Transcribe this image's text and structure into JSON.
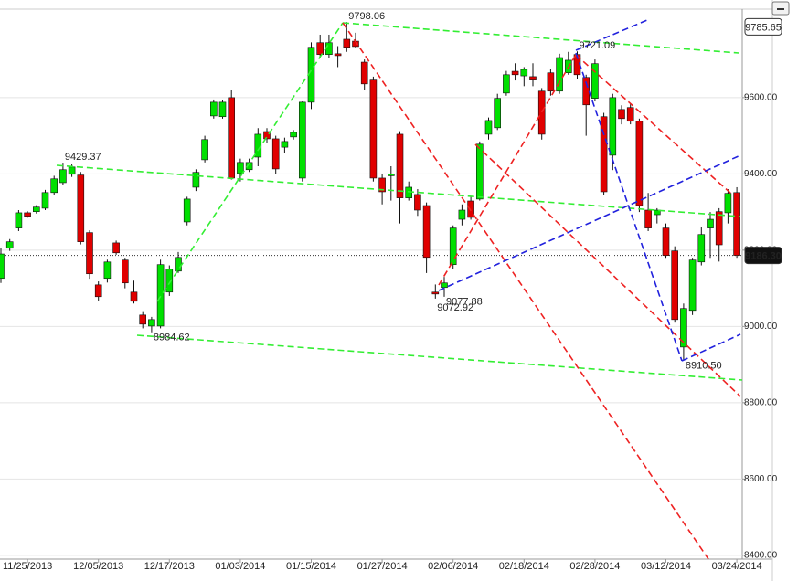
{
  "chart_data": {
    "type": "candlestick",
    "categories": [
      null,
      null,
      null,
      "11/25/2013",
      null,
      null,
      null,
      null,
      null,
      null,
      null,
      "12/05/2013",
      null,
      null,
      null,
      null,
      null,
      null,
      null,
      "12/17/2013",
      null,
      null,
      null,
      null,
      null,
      null,
      null,
      "01/03/2014",
      null,
      null,
      null,
      null,
      null,
      null,
      null,
      "01/15/2014",
      null,
      null,
      null,
      null,
      null,
      null,
      null,
      "01/27/2014",
      null,
      null,
      null,
      null,
      null,
      null,
      null,
      "02/06/2014",
      null,
      null,
      null,
      null,
      null,
      null,
      null,
      "02/18/2014",
      null,
      null,
      null,
      null,
      null,
      null,
      null,
      "02/28/2014",
      null,
      null,
      null,
      null,
      null,
      null,
      null,
      "03/12/2014",
      null,
      null,
      null,
      null,
      null,
      null,
      null,
      "03/24/2014"
    ],
    "open": [
      9126,
      9205,
      9258,
      9298,
      9301,
      9310,
      9351,
      9377,
      9399,
      9397,
      9246,
      9109,
      9126,
      9219,
      9174,
      9090,
      9030,
      9001,
      9001,
      9090,
      9145,
      9274,
      9365,
      9437,
      9552,
      9550,
      9600,
      9401,
      9411,
      9444,
      9511,
      9492,
      9470,
      9497,
      9389,
      9588,
      9744,
      9713,
      9715,
      9753,
      9748,
      9693,
      9646,
      9389,
      9395,
      9504,
      9337,
      9346,
      9317,
      9090,
      9102,
      9162,
      9281,
      9329,
      9334,
      9504,
      9521,
      9612,
      9669,
      9657,
      9655,
      9617,
      9665,
      9617,
      9665,
      9713,
      9653,
      9598,
      9550,
      9449,
      9569,
      9574,
      9538,
      9305,
      9293,
      9258,
      9198,
      8946,
      9042,
      9169,
      9258,
      9301,
      9298,
      9351
    ],
    "high": [
      9205,
      9229,
      9305,
      9302,
      9318,
      9358,
      9395,
      9429.37,
      9425,
      9405,
      9252,
      9118,
      9175,
      9225,
      9180,
      9120,
      9040,
      9025,
      9175,
      9160,
      9195,
      9340,
      9412,
      9500,
      9595,
      9595,
      9620,
      9440,
      9440,
      9520,
      9520,
      9500,
      9495,
      9515,
      9590,
      9745,
      9765,
      9765,
      9735,
      9798.06,
      9770,
      9700,
      9655,
      9400,
      9420,
      9512,
      9380,
      9360,
      9325,
      9110,
      9130,
      9265,
      9320,
      9340,
      9485,
      9548,
      9610,
      9670,
      9690,
      9680,
      9690,
      9625,
      9675,
      9715,
      9720,
      9721.09,
      9660,
      9700,
      9560,
      9610,
      9580,
      9585,
      9545,
      9350,
      9310,
      9270,
      9210,
      9060,
      9180,
      9260,
      9300,
      9310,
      9360,
      9365
    ],
    "low": [
      9114,
      9198,
      9250,
      9285,
      9296,
      9305,
      9345,
      9370,
      9392,
      9215,
      9125,
      9068,
      9115,
      9188,
      9100,
      9060,
      8995,
      8984.62,
      8995,
      9080,
      9140,
      9265,
      9355,
      9430,
      9545,
      9545,
      9385,
      9380,
      9405,
      9420,
      9480,
      9400,
      9455,
      9490,
      9380,
      9570,
      9705,
      9705,
      9680,
      9720,
      9730,
      9620,
      9380,
      9320,
      9330,
      9270,
      9330,
      9290,
      9140,
      9072.92,
      9077.88,
      9150,
      9265,
      9280,
      9330,
      9490,
      9515,
      9605,
      9645,
      9630,
      9630,
      9490,
      9605,
      9610,
      9660,
      9650,
      9500,
      9590,
      9345,
      9410,
      9530,
      9530,
      9300,
      9250,
      9270,
      9180,
      9010,
      8910.5,
      9030,
      9160,
      9180,
      9170,
      9270,
      9180
    ],
    "close": [
      9190,
      9222,
      9298,
      9289,
      9313,
      9351,
      9387,
      9411,
      9418,
      9222,
      9138,
      9078,
      9169,
      9193,
      9114,
      9066,
      9006,
      9018,
      9162,
      9150,
      9181,
      9334,
      9404,
      9490,
      9588,
      9588,
      9389,
      9430,
      9430,
      9504,
      9492,
      9413,
      9485,
      9509,
      9588,
      9732,
      9713,
      9744,
      9710,
      9732,
      9734,
      9636,
      9389,
      9353,
      9400,
      9337,
      9365,
      9305,
      9181,
      9085,
      9114,
      9258,
      9305,
      9286,
      9478,
      9540,
      9598,
      9660,
      9660,
      9674,
      9646,
      9504,
      9617,
      9705,
      9698,
      9660,
      9581,
      9689,
      9353,
      9600,
      9545,
      9538,
      9317,
      9258,
      9305,
      9186,
      9018,
      9047,
      9174,
      9241,
      9281,
      9214,
      9349,
      9186.3
    ],
    "up_color": "#00e000",
    "down_color": "#e00000",
    "ylim": [
      8390,
      9832
    ],
    "yticks": [
      {
        "value": 8400,
        "label": "8400.00"
      },
      {
        "value": 8600,
        "label": "8600.00"
      },
      {
        "value": 8800,
        "label": "8800.00"
      },
      {
        "value": 9000,
        "label": "9000.00"
      },
      {
        "value": 9200,
        "label": "9200.00"
      },
      {
        "value": 9400,
        "label": "9400.00"
      },
      {
        "value": 9600,
        "label": "9600.00"
      }
    ],
    "grid": true,
    "price_markers": [
      {
        "value": 9785.65,
        "label": "9785.65",
        "style": "outline"
      },
      {
        "value": 9186.3,
        "label": "9186.30",
        "style": "filled"
      }
    ],
    "annotations": [
      {
        "value": 9429.37,
        "label": "9429.37",
        "color": "#66dd22"
      },
      {
        "value": 9798.06,
        "label": "9798.06",
        "color": "#77cc00"
      },
      {
        "value": 8984.62,
        "label": "8984.62",
        "color": "#33bb22"
      },
      {
        "value": 9077.88,
        "label": "9077.88",
        "color": "#6655cc"
      },
      {
        "value": 9072.92,
        "label": "9072.92",
        "color": "#bb2266"
      },
      {
        "value": 9721.09,
        "label": "9721.09",
        "color": "#8822aa"
      },
      {
        "value": 8910.5,
        "label": "8910.50",
        "color": "#5544cc"
      }
    ]
  }
}
